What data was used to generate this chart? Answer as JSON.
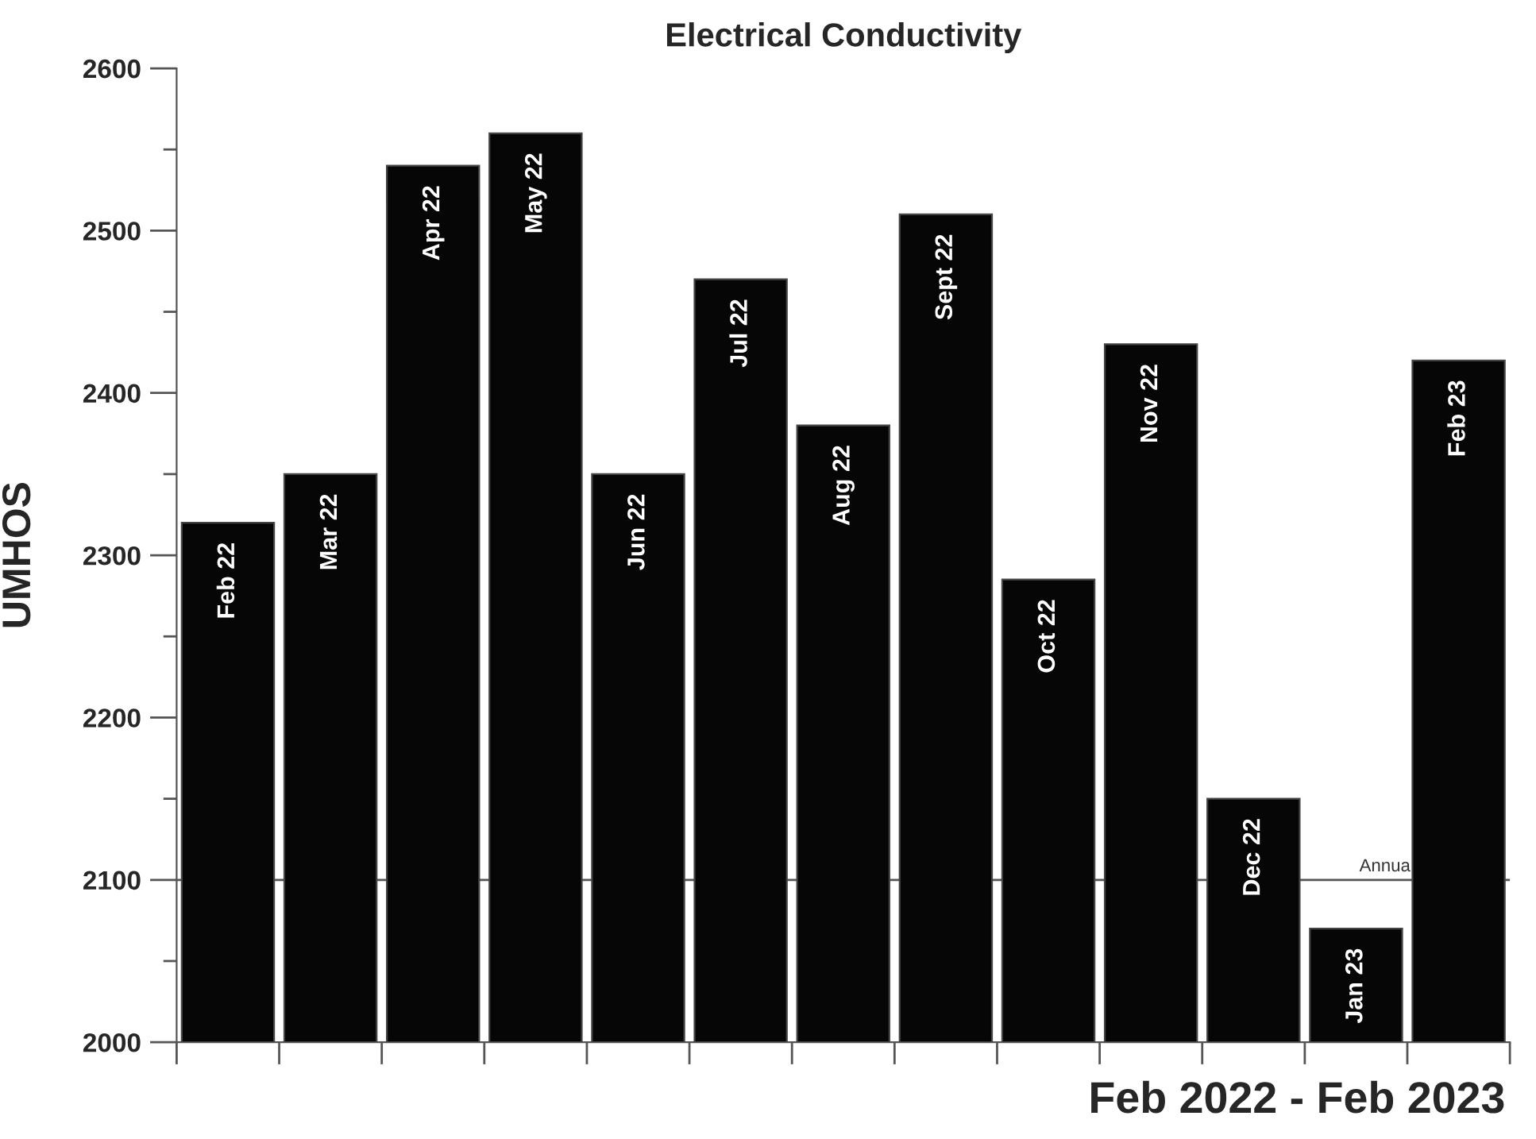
{
  "chart_data": {
    "type": "bar",
    "title": "Electrical Conductivity",
    "xlabel": "Feb 2022 - Feb 2023",
    "ylabel": "UMHOS",
    "categories": [
      "Feb 22",
      "Mar 22",
      "Apr 22",
      "May 22",
      "Jun 22",
      "Jul 22",
      "Aug 22",
      "Sept 22",
      "Oct 22",
      "Nov 22",
      "Dec 22",
      "Jan 23",
      "Feb 23"
    ],
    "values": [
      2320,
      2350,
      2540,
      2560,
      2350,
      2470,
      2380,
      2510,
      2285,
      2430,
      2150,
      2070,
      2420
    ],
    "color": "#060606",
    "ylim": [
      2000,
      2600
    ],
    "yticks": [
      2000,
      {
        "value": 2050,
        "label": null
      },
      2100,
      {
        "value": 2150,
        "label": null
      },
      2200,
      {
        "value": 2250,
        "label": null
      },
      2300,
      {
        "value": 2350,
        "label": null
      },
      2400,
      {
        "value": 2450,
        "label": null
      },
      2500,
      {
        "value": 2550,
        "label": null
      },
      2600
    ],
    "ref_lines": [
      {
        "axis": "y",
        "value": 2100,
        "label": "Annua",
        "color": "#555555"
      }
    ],
    "grid": false,
    "legend": false
  }
}
